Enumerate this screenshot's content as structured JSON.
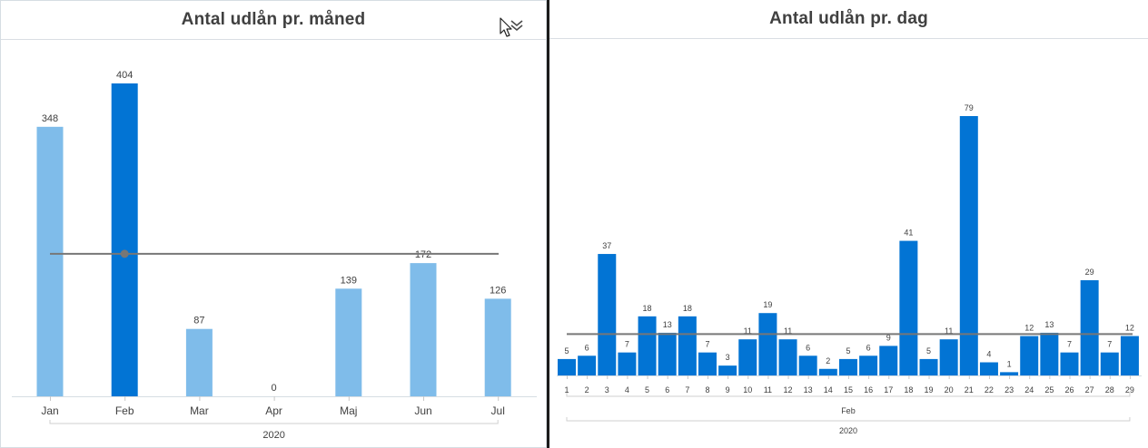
{
  "panels": {
    "monthly": {
      "title": "Antal udlån pr. måned"
    },
    "daily": {
      "title": "Antal udlån pr. dag"
    }
  },
  "icons": {
    "expand": "chevron-down-double-icon",
    "cursor": "mouse-pointer-icon"
  },
  "colors": {
    "bar_light": "#7fbcea",
    "bar_dark": "#0274d4",
    "average_line": "#777777",
    "text": "#404040"
  },
  "chart_data": [
    {
      "type": "bar",
      "title": "Antal udlån pr. måned",
      "categories": [
        "Jan",
        "Feb",
        "Mar",
        "Apr",
        "Maj",
        "Jun",
        "Jul"
      ],
      "values": [
        348,
        404,
        87,
        0,
        139,
        172,
        126
      ],
      "highlighted_category": "Feb",
      "group_label": "2020",
      "reference_line": {
        "value": 184,
        "marker_on": "Feb"
      },
      "ylim": [
        0,
        404
      ],
      "grid": false,
      "legend": "none",
      "data_labels": true
    },
    {
      "type": "bar",
      "title": "Antal udlån pr. dag",
      "categories": [
        "1",
        "2",
        "3",
        "4",
        "5",
        "6",
        "7",
        "8",
        "9",
        "10",
        "11",
        "12",
        "13",
        "14",
        "15",
        "16",
        "17",
        "18",
        "19",
        "20",
        "21",
        "22",
        "23",
        "24",
        "25",
        "26",
        "27",
        "28",
        "29"
      ],
      "values": [
        5,
        6,
        37,
        7,
        18,
        13,
        18,
        7,
        3,
        11,
        19,
        11,
        6,
        2,
        5,
        6,
        9,
        41,
        5,
        11,
        79,
        4,
        1,
        12,
        13,
        7,
        29,
        7,
        12
      ],
      "group_label": "Feb",
      "year_label": "2020",
      "reference_line": {
        "value": 12.6
      },
      "ylim": [
        0,
        79
      ],
      "grid": false,
      "legend": "none",
      "data_labels": true
    }
  ]
}
